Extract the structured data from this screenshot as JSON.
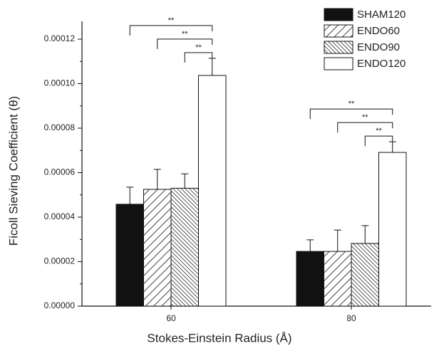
{
  "chart_data": {
    "type": "bar",
    "x_label": "Stokes-Einstein Radius (Å)",
    "y_label": "Ficoll Sieving Coefficient (θ)",
    "categories": [
      "60",
      "80"
    ],
    "series": [
      {
        "name": "SHAM120",
        "color": "#111111",
        "pattern": "solid",
        "values": [
          4.58e-05,
          2.46e-05
        ],
        "errors": [
          7.7e-06,
          5.2e-06
        ]
      },
      {
        "name": "ENDO60",
        "color": "#111111",
        "pattern": "hatch-forward",
        "values": [
          5.25e-05,
          2.46e-05
        ],
        "errors": [
          9e-06,
          9.6e-06
        ]
      },
      {
        "name": "ENDO90",
        "color": "#111111",
        "pattern": "hatch-back",
        "values": [
          5.3e-05,
          2.82e-05
        ],
        "errors": [
          6.5e-06,
          8e-06
        ]
      },
      {
        "name": "ENDO120",
        "color": "#111111",
        "pattern": "none",
        "values": [
          0.0001037,
          6.91e-05
        ],
        "errors": [
          7.7e-06,
          4.8e-06
        ]
      }
    ],
    "annotations": [
      "**",
      "**",
      "**",
      "**",
      "**",
      "**"
    ],
    "ylim": [
      0,
      0.000128
    ],
    "yticks": [
      {
        "value": 0,
        "label": "0.00000"
      },
      {
        "value": 2e-05,
        "label": "0.00002"
      },
      {
        "value": 4e-05,
        "label": "0.00004"
      },
      {
        "value": 6e-05,
        "label": "0.00006"
      },
      {
        "value": 8e-05,
        "label": "0.00008"
      },
      {
        "value": 0.0001,
        "label": "0.00010"
      },
      {
        "value": 0.00012,
        "label": "0.00012"
      }
    ],
    "legend": "top-right"
  }
}
